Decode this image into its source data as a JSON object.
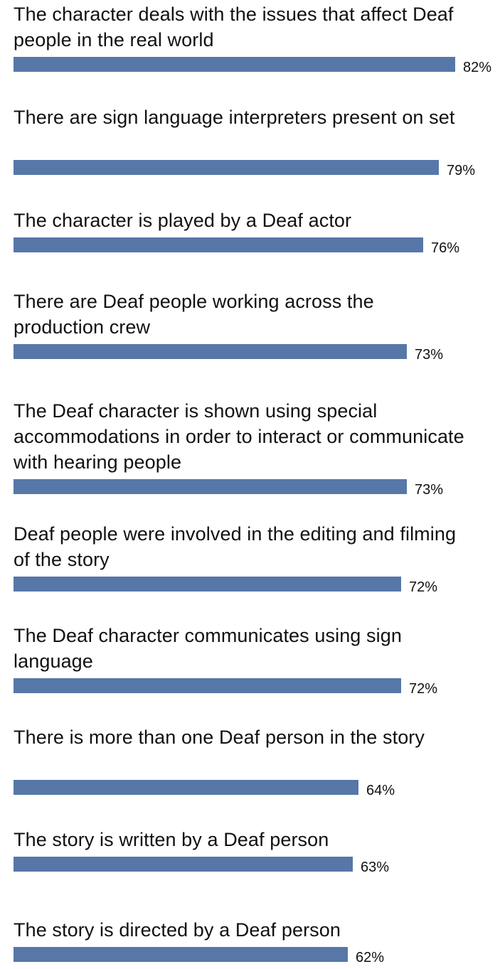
{
  "chart_data": {
    "type": "bar",
    "orientation": "horizontal",
    "value_suffix": "%",
    "bar_color": "#5677a8",
    "grid": false,
    "legend": "none",
    "xlim": [
      0,
      100
    ],
    "categories": [
      "The character deals with the issues that affect Deaf people in the real world",
      "There are sign language interpreters present on set",
      "The character is played by a Deaf actor",
      "There are Deaf people working across the production crew",
      "The Deaf character is shown using special accommodations in order to interact or communicate with hearing people",
      "Deaf people were involved in the editing and filming of the story",
      "The Deaf character communicates using sign language",
      "There is more than one Deaf person in the story",
      "The story is written by a Deaf person",
      "The story is directed by a Deaf person"
    ],
    "values": [
      82,
      79,
      76,
      73,
      73,
      72,
      72,
      64,
      63,
      62
    ]
  }
}
